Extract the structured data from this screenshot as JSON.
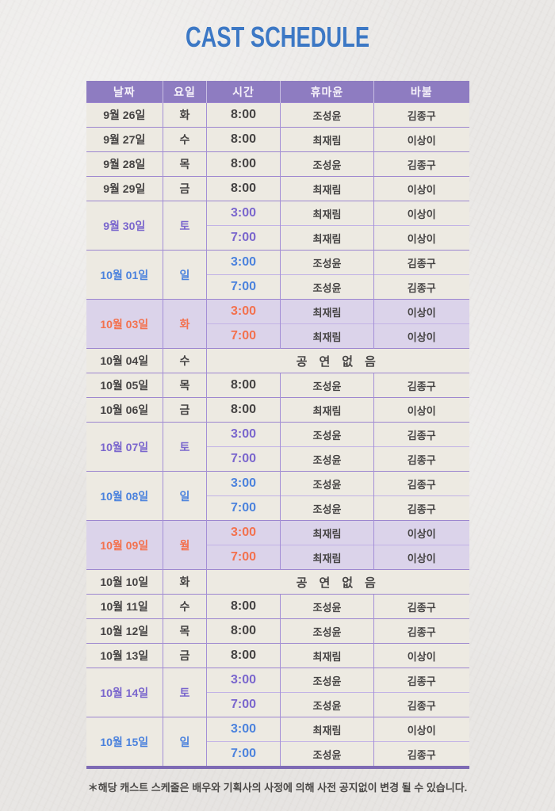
{
  "title": "CAST SCHEDULE",
  "footnote": "＊해당 캐스트 스케줄은 배우와 기획사의 사정에 의해 사전 공지없이 변경 될 수 있습니다.",
  "colors": {
    "title_blue": "#3c78c5",
    "header_bg": "#8e7cc1",
    "header_text": "#f5f1f9",
    "cell_bg": "#edeae2",
    "holiday_row_bg": "#dbd3ea",
    "text_dark": "#454343",
    "saturday_text": "#7a66cd",
    "sunday_text": "#4b82dd",
    "holiday_text": "#f3714e",
    "grid_line": "#a48fd6",
    "group_line": "#9c86cf",
    "sub_line": "#c2b3e6",
    "bottom_border": "#7e6ab4"
  },
  "table": {
    "headers": [
      "날짜",
      "요일",
      "시간",
      "휴마윤",
      "바불"
    ],
    "no_show_label": "공연없음",
    "rows": [
      {
        "date": "9월 26일",
        "day": "화",
        "type": "weekday",
        "shows": [
          {
            "time": "8:00",
            "humayun": "조성윤",
            "babul": "김종구"
          }
        ]
      },
      {
        "date": "9월 27일",
        "day": "수",
        "type": "weekday",
        "shows": [
          {
            "time": "8:00",
            "humayun": "최재림",
            "babul": "이상이"
          }
        ]
      },
      {
        "date": "9월 28일",
        "day": "목",
        "type": "weekday",
        "shows": [
          {
            "time": "8:00",
            "humayun": "조성윤",
            "babul": "김종구"
          }
        ]
      },
      {
        "date": "9월 29일",
        "day": "금",
        "type": "weekday",
        "shows": [
          {
            "time": "8:00",
            "humayun": "최재림",
            "babul": "이상이"
          }
        ]
      },
      {
        "date": "9월 30일",
        "day": "토",
        "type": "saturday",
        "shows": [
          {
            "time": "3:00",
            "humayun": "최재림",
            "babul": "이상이"
          },
          {
            "time": "7:00",
            "humayun": "최재림",
            "babul": "이상이"
          }
        ]
      },
      {
        "date": "10월 01일",
        "day": "일",
        "type": "sunday",
        "shows": [
          {
            "time": "3:00",
            "humayun": "조성윤",
            "babul": "김종구"
          },
          {
            "time": "7:00",
            "humayun": "조성윤",
            "babul": "김종구"
          }
        ]
      },
      {
        "date": "10월 03일",
        "day": "화",
        "type": "holiday",
        "shows": [
          {
            "time": "3:00",
            "humayun": "최재림",
            "babul": "이상이"
          },
          {
            "time": "7:00",
            "humayun": "최재림",
            "babul": "이상이"
          }
        ]
      },
      {
        "date": "10월 04일",
        "day": "수",
        "type": "weekday",
        "no_show": true
      },
      {
        "date": "10월 05일",
        "day": "목",
        "type": "weekday",
        "shows": [
          {
            "time": "8:00",
            "humayun": "조성윤",
            "babul": "김종구"
          }
        ]
      },
      {
        "date": "10월 06일",
        "day": "금",
        "type": "weekday",
        "shows": [
          {
            "time": "8:00",
            "humayun": "최재림",
            "babul": "이상이"
          }
        ]
      },
      {
        "date": "10월 07일",
        "day": "토",
        "type": "saturday",
        "shows": [
          {
            "time": "3:00",
            "humayun": "조성윤",
            "babul": "김종구"
          },
          {
            "time": "7:00",
            "humayun": "조성윤",
            "babul": "김종구"
          }
        ]
      },
      {
        "date": "10월 08일",
        "day": "일",
        "type": "sunday",
        "shows": [
          {
            "time": "3:00",
            "humayun": "조성윤",
            "babul": "김종구"
          },
          {
            "time": "7:00",
            "humayun": "조성윤",
            "babul": "김종구"
          }
        ]
      },
      {
        "date": "10월 09일",
        "day": "월",
        "type": "holiday",
        "shows": [
          {
            "time": "3:00",
            "humayun": "최재림",
            "babul": "이상이"
          },
          {
            "time": "7:00",
            "humayun": "최재림",
            "babul": "이상이"
          }
        ]
      },
      {
        "date": "10월 10일",
        "day": "화",
        "type": "weekday",
        "no_show": true
      },
      {
        "date": "10월 11일",
        "day": "수",
        "type": "weekday",
        "shows": [
          {
            "time": "8:00",
            "humayun": "조성윤",
            "babul": "김종구"
          }
        ]
      },
      {
        "date": "10월 12일",
        "day": "목",
        "type": "weekday",
        "shows": [
          {
            "time": "8:00",
            "humayun": "조성윤",
            "babul": "김종구"
          }
        ]
      },
      {
        "date": "10월 13일",
        "day": "금",
        "type": "weekday",
        "shows": [
          {
            "time": "8:00",
            "humayun": "최재림",
            "babul": "이상이"
          }
        ]
      },
      {
        "date": "10월 14일",
        "day": "토",
        "type": "saturday",
        "shows": [
          {
            "time": "3:00",
            "humayun": "조성윤",
            "babul": "김종구"
          },
          {
            "time": "7:00",
            "humayun": "조성윤",
            "babul": "김종구"
          }
        ]
      },
      {
        "date": "10월 15일",
        "day": "일",
        "type": "sunday",
        "shows": [
          {
            "time": "3:00",
            "humayun": "최재림",
            "babul": "이상이"
          },
          {
            "time": "7:00",
            "humayun": "조성윤",
            "babul": "김종구"
          }
        ]
      }
    ]
  }
}
